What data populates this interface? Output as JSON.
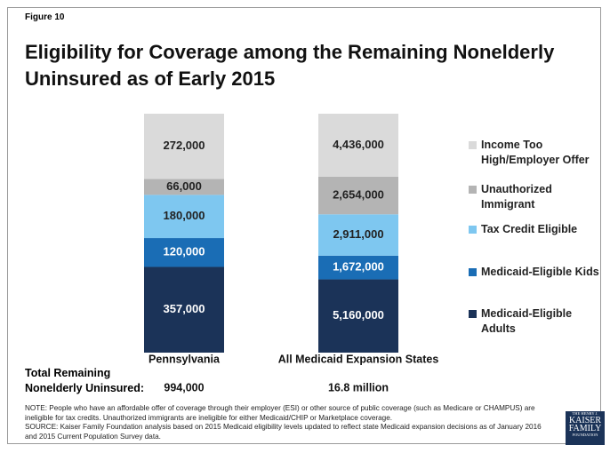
{
  "chart_data": {
    "type": "stacked_bar_100",
    "figure_label": "Figure 10",
    "title": "Eligibility for Coverage among the Remaining Nonelderly Uninsured as of Early 2015",
    "categories": [
      "Pennsylvania",
      "All Medicaid Expansion States"
    ],
    "series": [
      {
        "name": "Medicaid-Eligible Adults",
        "color": "#1b3358",
        "values": [
          357000,
          5160000
        ],
        "value_labels": [
          "357,000",
          "5,160,000"
        ]
      },
      {
        "name": "Medicaid-Eligible Kids",
        "color": "#1a6db5",
        "values": [
          120000,
          1672000
        ],
        "value_labels": [
          "120,000",
          "1,672,000"
        ]
      },
      {
        "name": "Tax Credit Eligible",
        "color": "#7ec7f0",
        "values": [
          180000,
          2911000
        ],
        "value_labels": [
          "180,000",
          "2,911,000"
        ]
      },
      {
        "name": "Unauthorized Immigrant",
        "color": "#b4b4b4",
        "values": [
          66000,
          2654000
        ],
        "value_labels": [
          "66,000",
          "2,654,000"
        ]
      },
      {
        "name": "Income Too High/Employer Offer",
        "color": "#dadada",
        "values": [
          272000,
          4436000
        ],
        "value_labels": [
          "272,000",
          "4,436,000"
        ]
      }
    ],
    "total_title": "Total Remaining Nonelderly Uninsured:",
    "totals": [
      "994,000",
      "16.8 million"
    ],
    "note": "NOTE: People who have an affordable offer of coverage through their employer (ESI) or other source of public coverage (such as Medicare or CHAMPUS) are ineligible for tax credits. Unauthorized immigrants are ineligible for either Medicaid/CHIP or Marketplace coverage.",
    "source": "SOURCE: Kaiser Family Foundation analysis based on 2015 Medicaid eligibility levels updated to reflect state Medicaid expansion decisions as of January 2016 and 2015 Current Population Survey data.",
    "logo": [
      "THE HENRY J.",
      "KAISER",
      "FAMILY",
      "FOUNDATION"
    ]
  }
}
